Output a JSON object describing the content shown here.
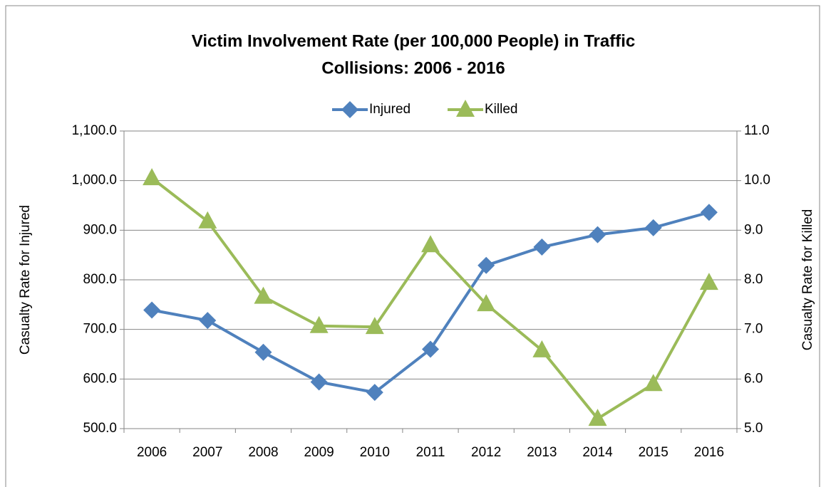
{
  "chart_data": {
    "type": "line",
    "title": [
      "Victim Involvement Rate (per 100,000 People) in Traffic",
      "Collisions: 2006 - 2016"
    ],
    "categories": [
      "2006",
      "2007",
      "2008",
      "2009",
      "2010",
      "2011",
      "2012",
      "2013",
      "2014",
      "2015",
      "2016"
    ],
    "series": [
      {
        "name": "Injured",
        "color": "#4f81bd",
        "marker": "diamond",
        "values": [
          739,
          718,
          654,
          594,
          573,
          660,
          829,
          866,
          891,
          905,
          936
        ]
      },
      {
        "name": "Killed",
        "color": "#9bbb59",
        "marker": "triangle",
        "axis": "y2",
        "values": [
          10.05,
          9.18,
          7.66,
          7.07,
          7.05,
          8.7,
          7.51,
          6.58,
          5.2,
          5.9,
          7.94
        ]
      }
    ],
    "ylabel": "Casualty Rate for Injured",
    "y2label": "Casualty Rate for Killed",
    "ylim": [
      500,
      1100
    ],
    "yticks": [
      {
        "value": 500,
        "label": "500.0"
      },
      {
        "value": 600,
        "label": "600.0"
      },
      {
        "value": 700,
        "label": "700.0"
      },
      {
        "value": 800,
        "label": "800.0"
      },
      {
        "value": 900,
        "label": "900.0"
      },
      {
        "value": 1000,
        "label": "1,000.0"
      },
      {
        "value": 1100,
        "label": "1,100.0"
      }
    ],
    "y2lim": [
      5,
      11
    ],
    "y2ticks": [
      {
        "value": 5,
        "label": "5.0"
      },
      {
        "value": 6,
        "label": "6.0"
      },
      {
        "value": 7,
        "label": "7.0"
      },
      {
        "value": 8,
        "label": "8.0"
      },
      {
        "value": 9,
        "label": "9.0"
      },
      {
        "value": 10,
        "label": "10.0"
      },
      {
        "value": 11,
        "label": "11.0"
      }
    ],
    "grid": true,
    "legend": "top"
  }
}
